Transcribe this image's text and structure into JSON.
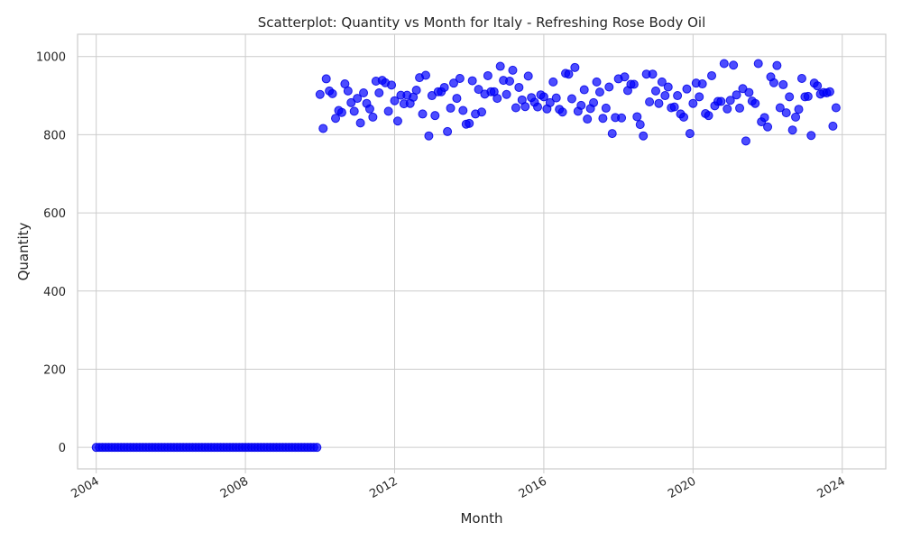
{
  "chart_data": {
    "type": "scatter",
    "title": "Scatterplot: Quantity vs Month for Italy - Refreshing Rose Body Oil",
    "xlabel": "Month",
    "ylabel": "Quantity",
    "x_start": "2004-01",
    "xlim": [
      "2003-07",
      "2025-03"
    ],
    "ylim": [
      -55,
      1057
    ],
    "xticks": [
      "2004",
      "2008",
      "2012",
      "2016",
      "2020",
      "2024"
    ],
    "yticks": [
      0,
      200,
      400,
      600,
      800,
      1000
    ],
    "grid": true,
    "color": "#0000ff",
    "series": [
      {
        "values": [
          0,
          0,
          0,
          0,
          0,
          0,
          0,
          0,
          0,
          0,
          0,
          0,
          0,
          0,
          0,
          0,
          0,
          0,
          0,
          0,
          0,
          0,
          0,
          0,
          0,
          0,
          0,
          0,
          0,
          0,
          0,
          0,
          0,
          0,
          0,
          0,
          0,
          0,
          0,
          0,
          0,
          0,
          0,
          0,
          0,
          0,
          0,
          0,
          0,
          0,
          0,
          0,
          0,
          0,
          0,
          0,
          0,
          0,
          0,
          0,
          0,
          0,
          0,
          0,
          0,
          0,
          0,
          0,
          0,
          0,
          0,
          0,
          903,
          816,
          943,
          912,
          905,
          842,
          862,
          857,
          930,
          912,
          882,
          860,
          893,
          830,
          907,
          880,
          866,
          845,
          937,
          907,
          939,
          933,
          860,
          927,
          887,
          835,
          901,
          879,
          901,
          880,
          896,
          914,
          946,
          853,
          952,
          797,
          900,
          849,
          910,
          910,
          921,
          808,
          868,
          932,
          893,
          944,
          862,
          827,
          829,
          938,
          853,
          916,
          858,
          904,
          951,
          910,
          910,
          893,
          975,
          939,
          903,
          937,
          965,
          869,
          921,
          889,
          872,
          950,
          895,
          883,
          871,
          902,
          897,
          866,
          882,
          935,
          894,
          865,
          858,
          957,
          955,
          892,
          972,
          860,
          875,
          915,
          840,
          867,
          882,
          935,
          909,
          842,
          868,
          922,
          803,
          844,
          943,
          843,
          948,
          913,
          929,
          929,
          846,
          826,
          797,
          955,
          884,
          955,
          912,
          880,
          935,
          900,
          922,
          869,
          871,
          900,
          853,
          845,
          917,
          803,
          880,
          932,
          897,
          930,
          854,
          849,
          951,
          874,
          885,
          885,
          982,
          866,
          888,
          978,
          902,
          868,
          918,
          784,
          908,
          886,
          880,
          982,
          833,
          844,
          820,
          948,
          933,
          977,
          869,
          928,
          856,
          897,
          812,
          845,
          865,
          944,
          897,
          898,
          798,
          932,
          925,
          904,
          908,
          907,
          910,
          822,
          869
        ]
      }
    ]
  }
}
